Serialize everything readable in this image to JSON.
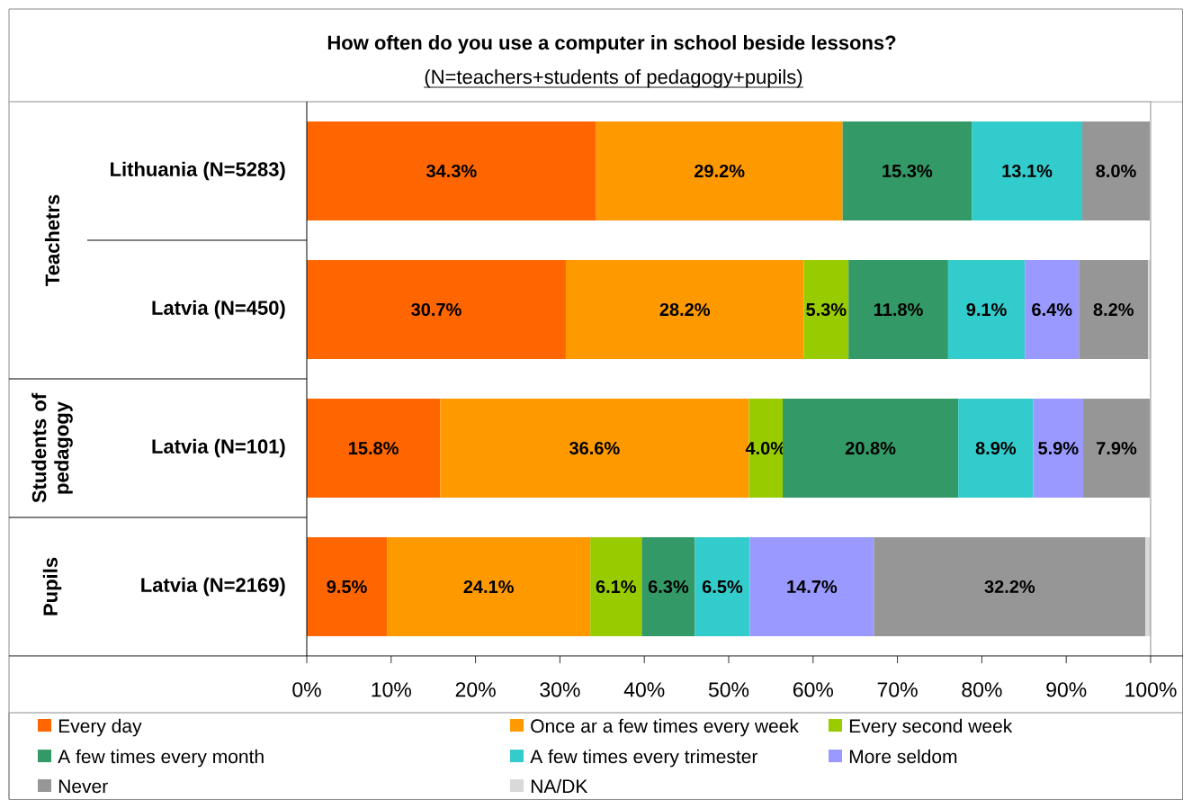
{
  "chart_data": {
    "type": "bar",
    "orientation": "horizontal",
    "stacked": true,
    "title": "How often do you use a computer in school beside lessons?",
    "subtitle": "(N=teachers+students of pedagogy+pupils)",
    "categories": [
      "Lithuania (N=5283)",
      "Latvia (N=450)",
      "Latvia (N=101)",
      "Latvia (N=2169)"
    ],
    "annotations": [
      "Teachetrs",
      "Students of pedagogy",
      "Pupils"
    ],
    "series": [
      {
        "name": "Every day",
        "color": "#ff6600",
        "values": [
          34.3,
          30.7,
          15.8,
          9.5
        ],
        "value_labels": [
          "34.3%",
          "30.7%",
          "15.8%",
          "9.5%"
        ]
      },
      {
        "name": "Once ar a few times every week",
        "color": "#ff9900",
        "values": [
          29.2,
          28.2,
          36.6,
          24.1
        ],
        "value_labels": [
          "29.2%",
          "28.2%",
          "36.6%",
          "24.1%"
        ]
      },
      {
        "name": "Every second week",
        "color": "#99cc00",
        "values": [
          null,
          5.3,
          4.0,
          6.1
        ],
        "value_labels": [
          null,
          "5.3%",
          "4.0%",
          "6.1%"
        ]
      },
      {
        "name": "A few times every month",
        "color": "#339966",
        "values": [
          15.3,
          11.8,
          20.8,
          6.3
        ],
        "value_labels": [
          "15.3%",
          "11.8%",
          "20.8%",
          "6.3%"
        ]
      },
      {
        "name": "A few times every trimester",
        "color": "#33cccc",
        "values": [
          13.1,
          9.1,
          8.9,
          6.5
        ],
        "value_labels": [
          "13.1%",
          "9.1%",
          "8.9%",
          "6.5%"
        ]
      },
      {
        "name": "More seldom",
        "color": "#9999ff",
        "values": [
          null,
          6.4,
          5.9,
          14.7
        ],
        "value_labels": [
          null,
          "6.4%",
          "5.9%",
          "14.7%"
        ]
      },
      {
        "name": "Never",
        "color": "#969696",
        "values": [
          8.0,
          8.2,
          7.9,
          32.2
        ],
        "value_labels": [
          "8.0%",
          "8.2%",
          "7.9%",
          "32.2%"
        ]
      },
      {
        "name": "NA/DK",
        "color": "#d9d9d9",
        "values": [
          null,
          0.3,
          null,
          0.6
        ]
      }
    ],
    "xlim": [
      0,
      100
    ],
    "xticks": [
      {
        "value": 0,
        "label": "0%"
      },
      {
        "value": 10,
        "label": "10%"
      },
      {
        "value": 20,
        "label": "20%"
      },
      {
        "value": 30,
        "label": "30%"
      },
      {
        "value": 40,
        "label": "40%"
      },
      {
        "value": 50,
        "label": "50%"
      },
      {
        "value": 60,
        "label": "60%"
      },
      {
        "value": 70,
        "label": "70%"
      },
      {
        "value": 80,
        "label": "80%"
      },
      {
        "value": 90,
        "label": "90%"
      },
      {
        "value": 100,
        "label": "100%"
      }
    ],
    "legend": "bottom"
  }
}
